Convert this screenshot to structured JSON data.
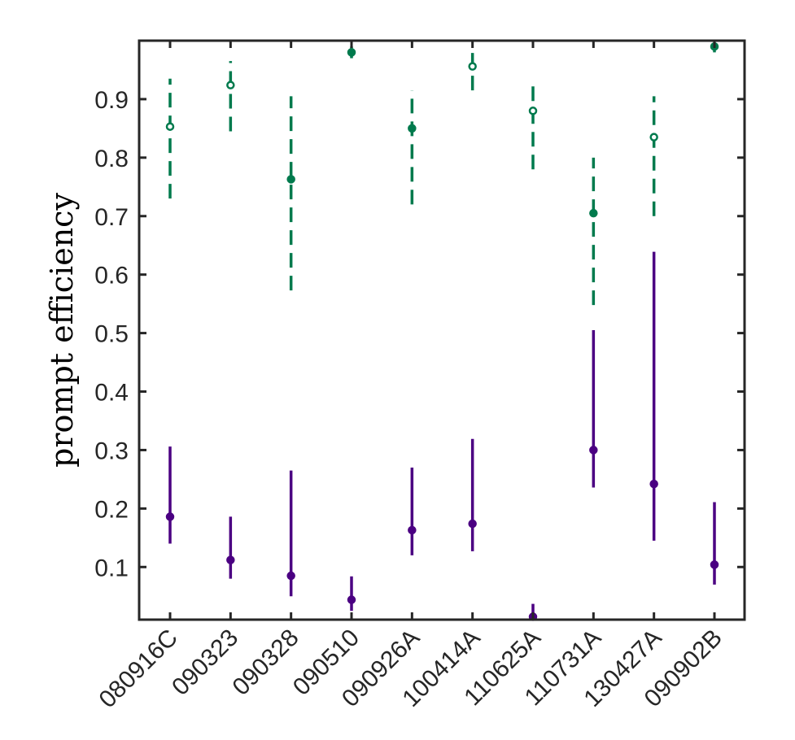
{
  "chart_data": {
    "type": "scatter",
    "ylabel": "prompt efficiency",
    "xlabel": "",
    "title": "",
    "categories": [
      "080916C",
      "090323",
      "090328",
      "090510",
      "090926A",
      "100414A",
      "110625A",
      "110731A",
      "130427A",
      "090902B"
    ],
    "ylim": [
      0.01,
      1.0
    ],
    "yticks": [
      0.1,
      0.2,
      0.3,
      0.4,
      0.5,
      0.6,
      0.7,
      0.8,
      0.9
    ],
    "ytick_labels": [
      "0.1",
      "0.2",
      "0.3",
      "0.4",
      "0.5",
      "0.6",
      "0.7",
      "0.8",
      "0.9"
    ],
    "grid": false,
    "series": [
      {
        "color": "#007a4d",
        "line_style": "dashed",
        "values": [
          0.853,
          0.924,
          0.763,
          0.98,
          0.85,
          0.956,
          0.88,
          0.705,
          0.835,
          0.99
        ],
        "lower": [
          0.73,
          0.845,
          0.573,
          0.97,
          0.72,
          0.915,
          0.78,
          0.548,
          0.7,
          0.98
        ],
        "upper": [
          0.935,
          0.965,
          0.905,
          0.99,
          0.915,
          0.99,
          0.925,
          0.8,
          0.905,
          0.997
        ],
        "marker_fill": [
          "open",
          "open",
          "filled",
          "filled",
          "filled",
          "open",
          "open",
          "filled",
          "open",
          "filled"
        ]
      },
      {
        "color": "#4b0082",
        "line_style": "solid",
        "values": [
          0.186,
          0.112,
          0.085,
          0.044,
          0.163,
          0.174,
          0.015,
          0.3,
          0.242,
          0.104
        ],
        "lower": [
          0.14,
          0.08,
          0.05,
          0.025,
          0.12,
          0.127,
          0.005,
          0.236,
          0.145,
          0.07
        ],
        "upper": [
          0.306,
          0.186,
          0.265,
          0.084,
          0.27,
          0.319,
          0.037,
          0.505,
          0.639,
          0.211
        ],
        "marker_fill": [
          "filled",
          "filled",
          "filled",
          "filled",
          "filled",
          "filled",
          "filled",
          "filled",
          "filled",
          "filled"
        ]
      }
    ]
  }
}
